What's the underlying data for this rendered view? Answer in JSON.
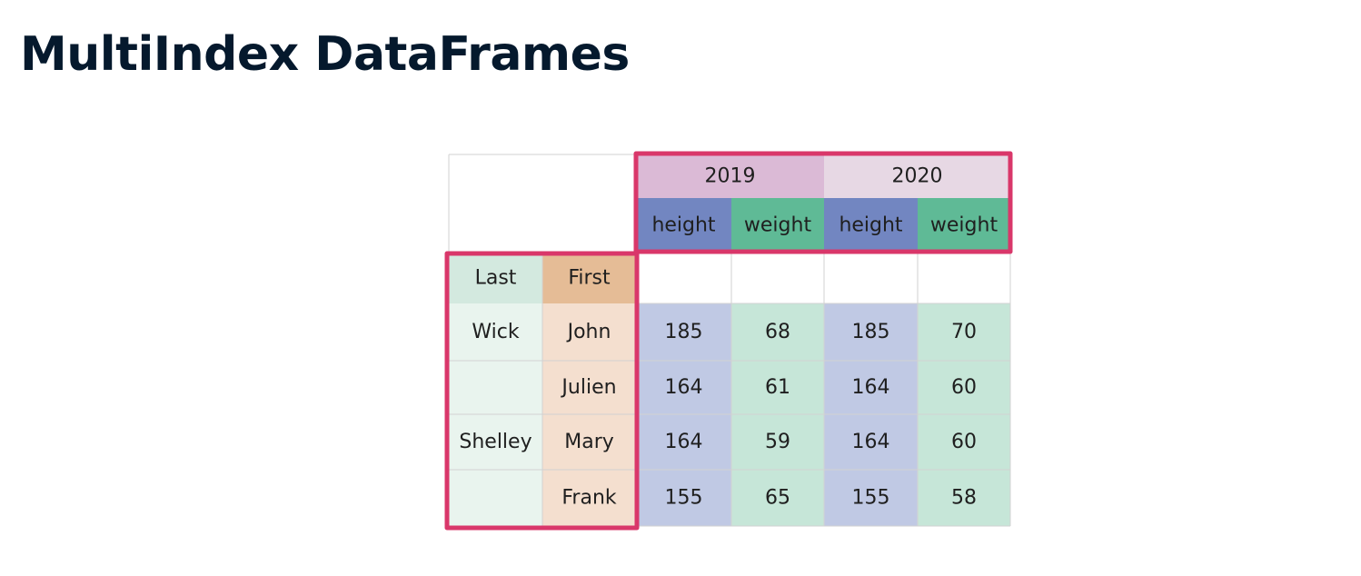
{
  "title": "MultiIndex DataFrames",
  "columns": {
    "years": [
      "2019",
      "2020"
    ],
    "measures": [
      "height",
      "weight",
      "height",
      "weight"
    ]
  },
  "index": {
    "names": [
      "Last",
      "First"
    ],
    "rows": [
      {
        "last": "Wick",
        "first": "John"
      },
      {
        "last": "",
        "first": "Julien"
      },
      {
        "last": "Shelley",
        "first": "Mary"
      },
      {
        "last": "",
        "first": "Frank"
      }
    ]
  },
  "values": [
    [
      "185",
      "68",
      "185",
      "70"
    ],
    [
      "164",
      "61",
      "164",
      "60"
    ],
    [
      "164",
      "59",
      "164",
      "60"
    ],
    [
      "155",
      "65",
      "155",
      "58"
    ]
  ],
  "colors": {
    "year_2019_bg": "#dbbad6",
    "year_2020_bg": "#e7d8e4",
    "height_header_bg": "#7286c1",
    "weight_header_bg": "#5fba96",
    "height_cell_bg": "#c0c9e4",
    "weight_cell_bg": "#c6e6d8",
    "last_header_bg": "#d3e9df",
    "last_cell_bg": "#e9f4ee",
    "first_header_bg": "#e5bc96",
    "first_cell_bg": "#f4dfcf",
    "highlight_border": "#d9376a",
    "grid_line": "#d2d2d2"
  }
}
